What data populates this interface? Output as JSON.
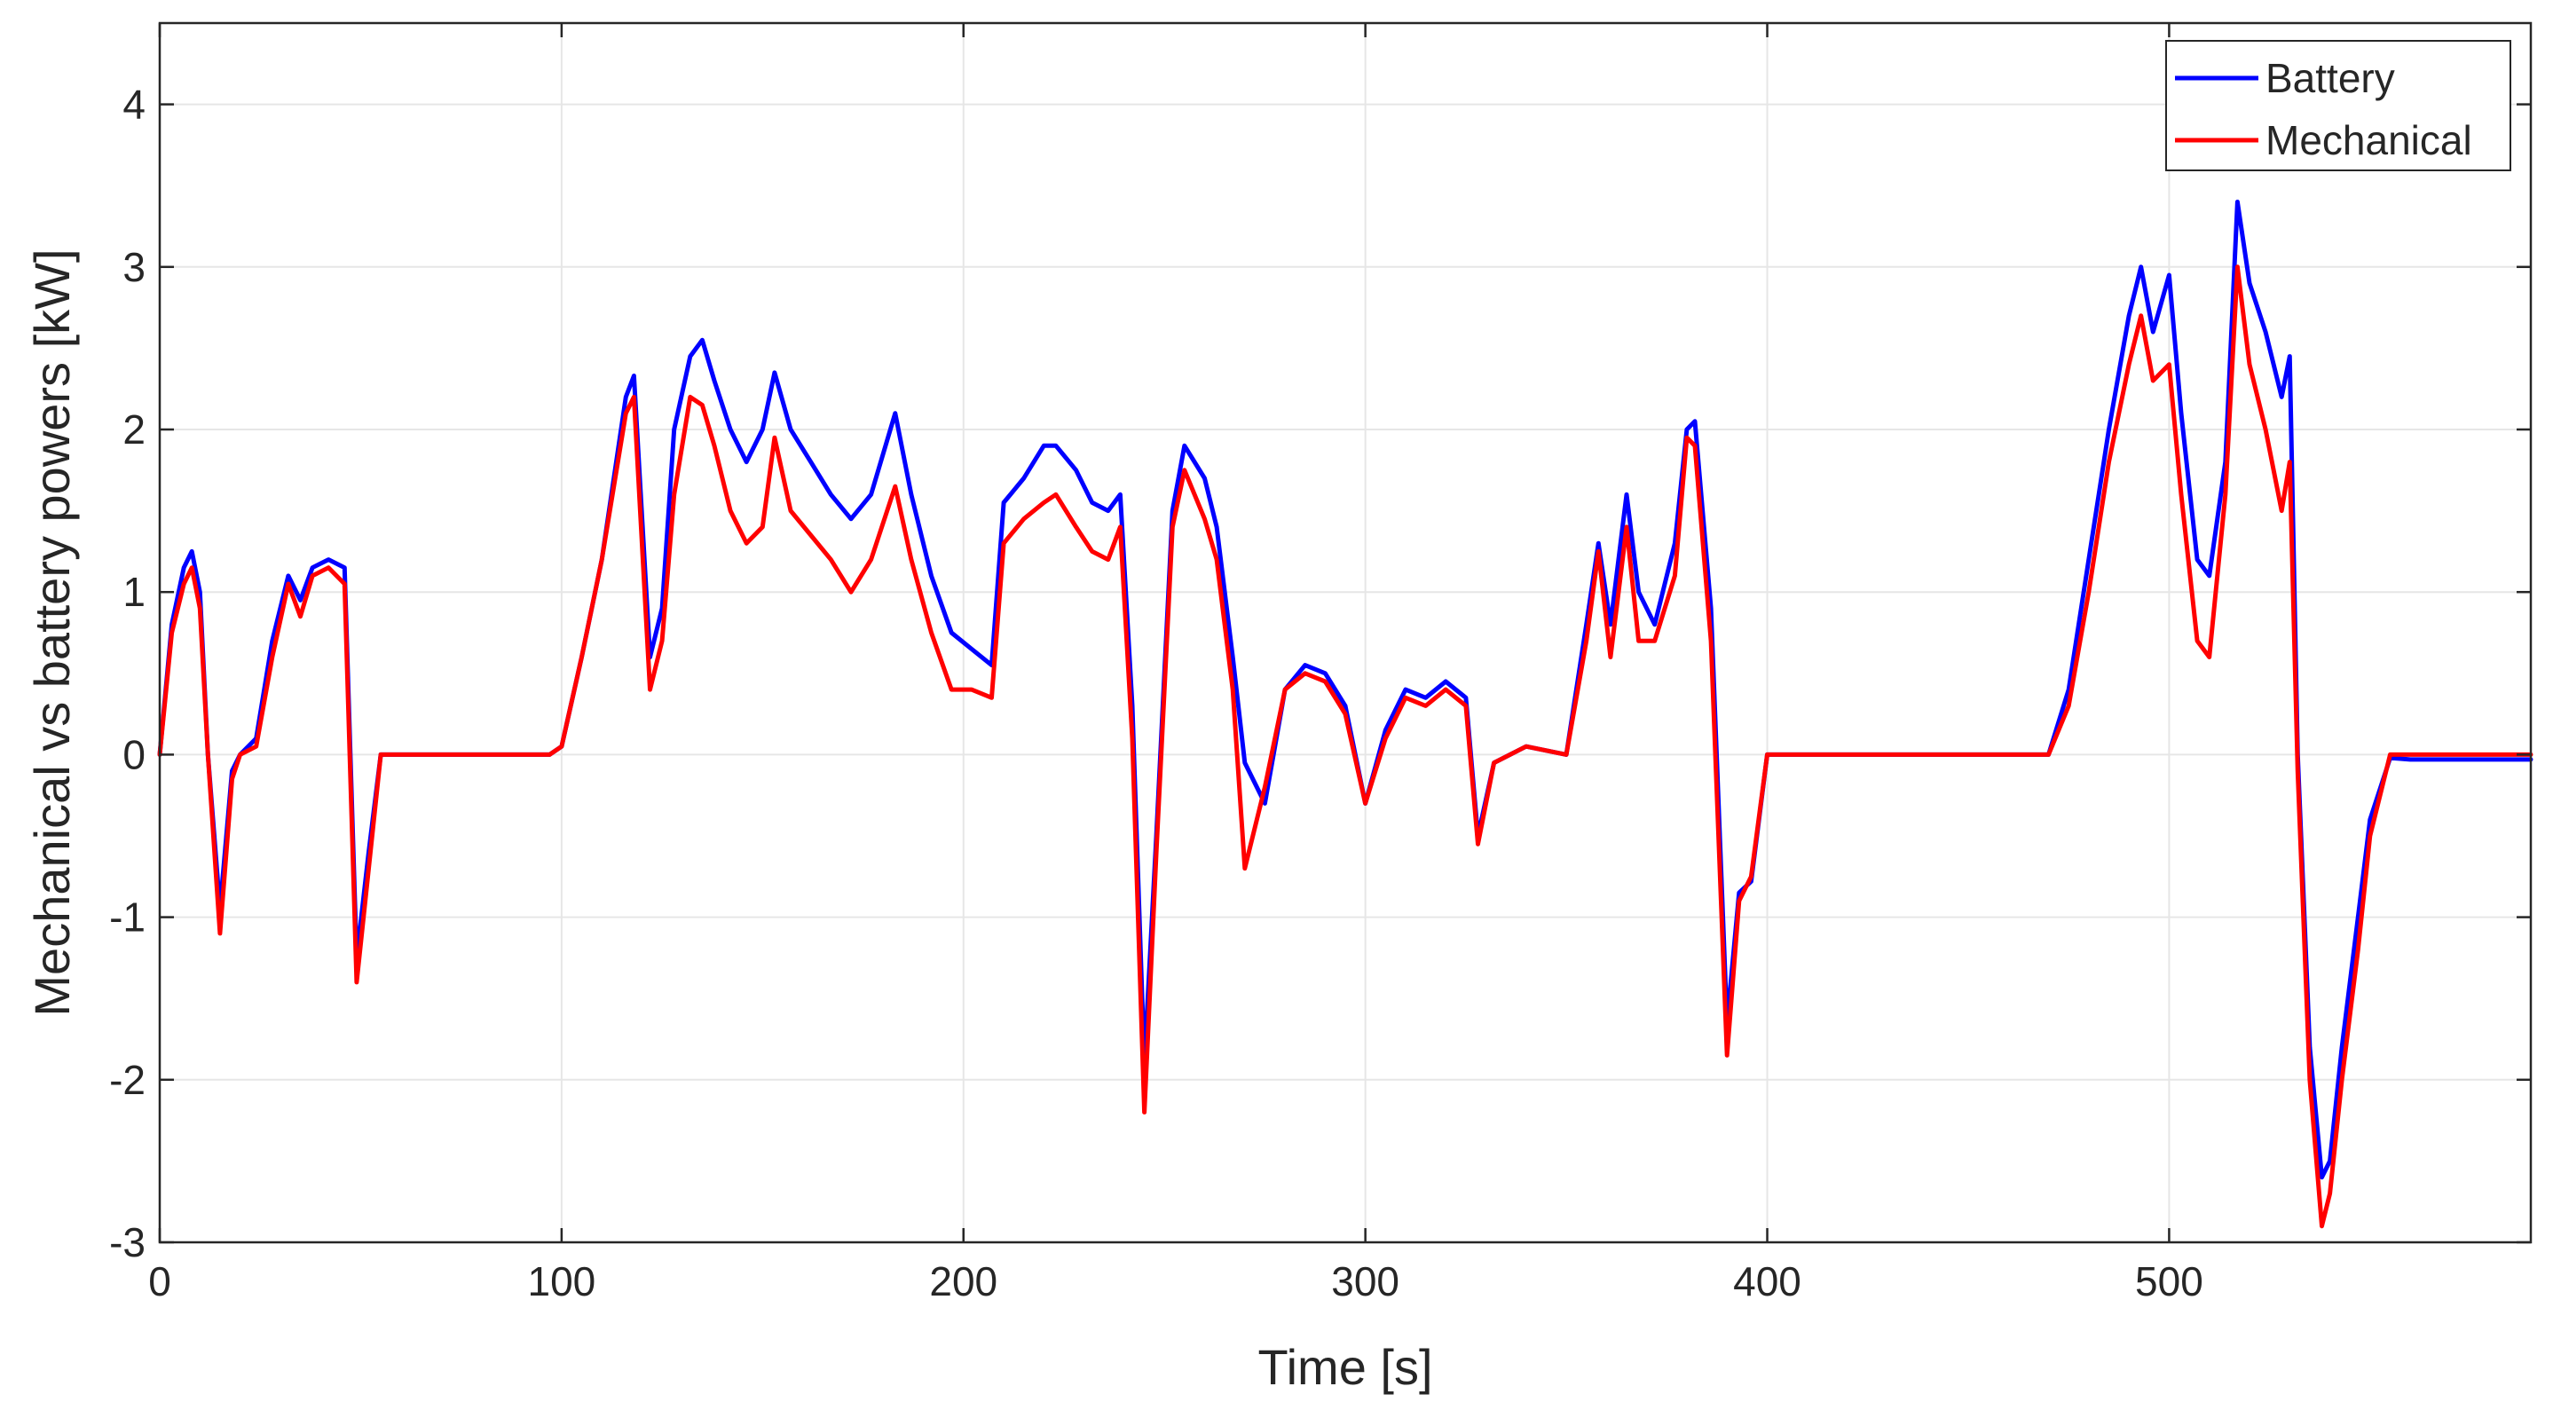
{
  "chart_data": {
    "type": "line",
    "xlabel": "Time  [s]",
    "ylabel": "Mechanical vs battery powers  [kW]",
    "xlim": [
      0,
      590
    ],
    "ylim": [
      -3,
      4.5
    ],
    "xticks": [
      0,
      100,
      200,
      300,
      400,
      500
    ],
    "yticks": [
      -3,
      -2,
      -1,
      0,
      1,
      2,
      3,
      4
    ],
    "grid": true,
    "legend_position": "top-right",
    "series": [
      {
        "name": "Battery",
        "color": "#0000ff",
        "x": [
          0,
          3,
          6,
          8,
          10,
          12,
          15,
          18,
          20,
          24,
          28,
          32,
          35,
          38,
          42,
          46,
          49,
          52,
          55,
          60,
          70,
          80,
          90,
          97,
          100,
          105,
          110,
          116,
          118,
          122,
          125,
          128,
          132,
          135,
          138,
          142,
          146,
          150,
          153,
          157,
          162,
          167,
          172,
          177,
          183,
          187,
          192,
          197,
          202,
          207,
          210,
          215,
          220,
          223,
          228,
          232,
          236,
          239,
          242,
          245,
          248,
          252,
          255,
          260,
          263,
          267,
          270,
          275,
          280,
          285,
          290,
          295,
          300,
          305,
          310,
          315,
          320,
          325,
          328,
          332,
          340,
          350,
          355,
          358,
          361,
          365,
          368,
          372,
          377,
          380,
          382,
          386,
          390,
          393,
          396,
          400,
          410,
          420,
          440,
          460,
          470,
          475,
          480,
          485,
          490,
          493,
          496,
          500,
          503,
          507,
          510,
          514,
          517,
          520,
          524,
          528,
          530,
          532,
          535,
          538,
          540,
          543,
          547,
          550,
          555,
          560,
          570,
          580,
          590
        ],
        "values": [
          0,
          0.8,
          1.15,
          1.25,
          1,
          0,
          -0.95,
          -0.1,
          0,
          0.1,
          0.7,
          1.1,
          0.95,
          1.15,
          1.2,
          1.15,
          -1.25,
          -0.6,
          0,
          0,
          0,
          0,
          0,
          0,
          0.05,
          0.6,
          1.2,
          2.2,
          2.33,
          0.6,
          0.9,
          2.0,
          2.45,
          2.55,
          2.3,
          2.0,
          1.8,
          2.0,
          2.35,
          2.0,
          1.8,
          1.6,
          1.45,
          1.6,
          2.1,
          1.6,
          1.1,
          0.75,
          0.65,
          0.55,
          1.55,
          1.7,
          1.9,
          1.9,
          1.75,
          1.55,
          1.5,
          1.6,
          0.3,
          -1.9,
          -0.5,
          1.5,
          1.9,
          1.7,
          1.4,
          0.6,
          -0.05,
          -0.3,
          0.4,
          0.55,
          0.5,
          0.3,
          -0.3,
          0.15,
          0.4,
          0.35,
          0.45,
          0.35,
          -0.5,
          -0.05,
          0.05,
          0,
          0.8,
          1.3,
          0.8,
          1.6,
          1.0,
          0.8,
          1.3,
          2.0,
          2.05,
          0.9,
          -1.65,
          -0.85,
          -0.78,
          0,
          0,
          0,
          0,
          0,
          0,
          0.4,
          1.2,
          2.0,
          2.7,
          3.0,
          2.6,
          2.95,
          2.1,
          1.2,
          1.1,
          1.8,
          3.4,
          2.9,
          2.6,
          2.2,
          2.45,
          0,
          -1.8,
          -2.6,
          -2.5,
          -1.8,
          -1.0,
          -0.4,
          -0.02,
          -0.03,
          -0.03,
          -0.03,
          -0.03
        ]
      },
      {
        "name": "Mechanical",
        "color": "#ff0000",
        "x": [
          0,
          3,
          6,
          8,
          10,
          12,
          15,
          18,
          20,
          24,
          28,
          32,
          35,
          38,
          42,
          46,
          49,
          52,
          55,
          60,
          70,
          80,
          90,
          97,
          100,
          105,
          110,
          116,
          118,
          122,
          125,
          128,
          132,
          135,
          138,
          142,
          146,
          150,
          153,
          157,
          162,
          167,
          172,
          177,
          183,
          187,
          192,
          197,
          202,
          207,
          210,
          215,
          220,
          223,
          228,
          232,
          236,
          239,
          242,
          245,
          248,
          252,
          255,
          260,
          263,
          267,
          270,
          275,
          280,
          285,
          290,
          295,
          300,
          305,
          310,
          315,
          320,
          325,
          328,
          332,
          340,
          350,
          355,
          358,
          361,
          365,
          368,
          372,
          377,
          380,
          382,
          386,
          390,
          393,
          396,
          400,
          410,
          420,
          440,
          460,
          470,
          475,
          480,
          485,
          490,
          493,
          496,
          500,
          503,
          507,
          510,
          514,
          517,
          520,
          524,
          528,
          530,
          532,
          535,
          538,
          540,
          543,
          547,
          550,
          555,
          560,
          570,
          580,
          590
        ],
        "values": [
          0,
          0.75,
          1.05,
          1.15,
          0.9,
          0,
          -1.1,
          -0.15,
          0,
          0.05,
          0.6,
          1.05,
          0.85,
          1.1,
          1.15,
          1.05,
          -1.4,
          -0.7,
          0,
          0,
          0,
          0,
          0,
          0,
          0.05,
          0.6,
          1.2,
          2.1,
          2.2,
          0.4,
          0.7,
          1.6,
          2.2,
          2.15,
          1.9,
          1.5,
          1.3,
          1.4,
          1.95,
          1.5,
          1.35,
          1.2,
          1.0,
          1.2,
          1.65,
          1.2,
          0.75,
          0.4,
          0.4,
          0.35,
          1.3,
          1.45,
          1.55,
          1.6,
          1.4,
          1.25,
          1.2,
          1.4,
          0.1,
          -2.2,
          -0.6,
          1.4,
          1.75,
          1.45,
          1.2,
          0.4,
          -0.7,
          -0.2,
          0.4,
          0.5,
          0.45,
          0.25,
          -0.3,
          0.1,
          0.35,
          0.3,
          0.4,
          0.3,
          -0.55,
          -0.05,
          0.05,
          0,
          0.7,
          1.25,
          0.6,
          1.4,
          0.7,
          0.7,
          1.1,
          1.95,
          1.9,
          0.7,
          -1.85,
          -0.9,
          -0.75,
          0,
          0,
          0,
          0,
          0,
          0,
          0.3,
          1.0,
          1.8,
          2.4,
          2.7,
          2.3,
          2.4,
          1.6,
          0.7,
          0.6,
          1.6,
          3.0,
          2.4,
          2.0,
          1.5,
          1.8,
          -0.1,
          -2.0,
          -2.9,
          -2.7,
          -2.0,
          -1.2,
          -0.5,
          0,
          0,
          0,
          0,
          0
        ]
      }
    ]
  }
}
